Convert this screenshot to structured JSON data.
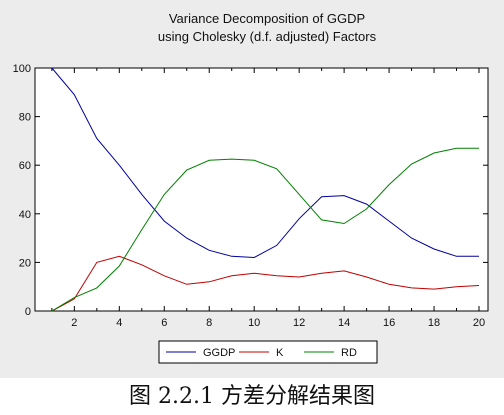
{
  "caption": "图 2.2.1 方差分解结果图",
  "chart_data": {
    "type": "line",
    "title_lines": [
      "Variance Decomposition of GGDP",
      "using Cholesky (d.f. adjusted) Factors"
    ],
    "x": [
      1,
      2,
      3,
      4,
      5,
      6,
      7,
      8,
      9,
      10,
      11,
      12,
      13,
      14,
      15,
      16,
      17,
      18,
      19,
      20
    ],
    "xticks": [
      2,
      4,
      6,
      8,
      10,
      12,
      14,
      16,
      18,
      20
    ],
    "yticks": [
      0,
      20,
      40,
      60,
      80,
      100
    ],
    "xlim": [
      0.25,
      20.4
    ],
    "ylim": [
      0,
      100
    ],
    "grid": false,
    "legend_position": "bottom-center",
    "series": [
      {
        "name": "GGDP",
        "color": "#0000a0",
        "values": [
          100,
          89,
          71,
          60,
          48,
          37,
          30,
          25,
          22.5,
          22,
          27,
          38,
          47,
          47.5,
          44,
          37,
          30,
          25.5,
          22.5,
          22.5
        ]
      },
      {
        "name": "K",
        "color": "#c00000",
        "values": [
          0,
          5,
          20,
          22.5,
          19,
          14.5,
          11,
          12,
          14.5,
          15.5,
          14.5,
          14,
          15.5,
          16.5,
          14,
          11,
          9.5,
          9,
          10,
          10.5
        ]
      },
      {
        "name": "RD",
        "color": "#008000",
        "values": [
          0,
          5.5,
          9.5,
          18.5,
          33.5,
          48,
          58,
          62,
          62.5,
          62,
          58.5,
          48,
          37.5,
          36,
          42,
          52,
          60.5,
          65,
          67,
          67
        ]
      }
    ]
  }
}
